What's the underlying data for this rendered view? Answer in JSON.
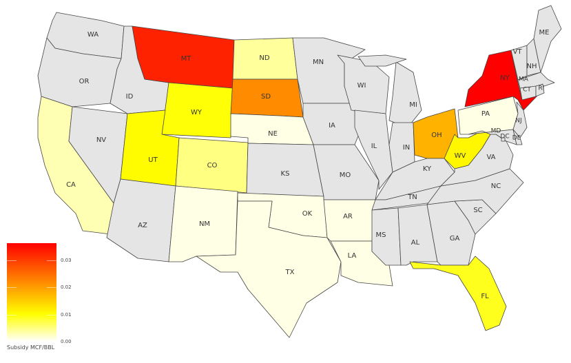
{
  "legend": {
    "title": "Subsidy MCF/BBL",
    "ticks": [
      "0.00",
      "0.01",
      "0.02",
      "0.03"
    ],
    "range": [
      0,
      0.0365
    ],
    "colors": {
      "low": "#ffffff",
      "mid": "#ffff00",
      "orange": "#ff8c00",
      "high": "#ff0000"
    }
  },
  "no_data_color": "#e5e5e5",
  "states": [
    {
      "code": "WA",
      "value": null
    },
    {
      "code": "OR",
      "value": null
    },
    {
      "code": "CA",
      "value": 0.003
    },
    {
      "code": "NV",
      "value": null
    },
    {
      "code": "ID",
      "value": null
    },
    {
      "code": "MT",
      "value": 0.033
    },
    {
      "code": "WY",
      "value": 0.01
    },
    {
      "code": "UT",
      "value": 0.0105
    },
    {
      "code": "CO",
      "value": 0.005
    },
    {
      "code": "AZ",
      "value": null
    },
    {
      "code": "NM",
      "value": 0.001
    },
    {
      "code": "ND",
      "value": 0.004
    },
    {
      "code": "SD",
      "value": 0.022
    },
    {
      "code": "NE",
      "value": 0.001
    },
    {
      "code": "KS",
      "value": null
    },
    {
      "code": "OK",
      "value": 0.001
    },
    {
      "code": "TX",
      "value": 0.001
    },
    {
      "code": "MN",
      "value": null
    },
    {
      "code": "IA",
      "value": null
    },
    {
      "code": "MO",
      "value": null
    },
    {
      "code": "AR",
      "value": 0.001
    },
    {
      "code": "LA",
      "value": 0.001
    },
    {
      "code": "WI",
      "value": null
    },
    {
      "code": "IL",
      "value": null
    },
    {
      "code": "MI",
      "value": null
    },
    {
      "code": "IN",
      "value": null
    },
    {
      "code": "OH",
      "value": 0.018
    },
    {
      "code": "KY",
      "value": null
    },
    {
      "code": "TN",
      "value": null
    },
    {
      "code": "MS",
      "value": null
    },
    {
      "code": "AL",
      "value": null
    },
    {
      "code": "GA",
      "value": null
    },
    {
      "code": "FL",
      "value": 0.009
    },
    {
      "code": "SC",
      "value": null
    },
    {
      "code": "NC",
      "value": null
    },
    {
      "code": "VA",
      "value": null
    },
    {
      "code": "WV",
      "value": 0.011
    },
    {
      "code": "PA",
      "value": 0.001
    },
    {
      "code": "NY",
      "value": 0.0365
    },
    {
      "code": "NJ",
      "value": null
    },
    {
      "code": "MD",
      "value": null
    },
    {
      "code": "DE",
      "value": null
    },
    {
      "code": "DC",
      "value": null
    },
    {
      "code": "VT",
      "value": null
    },
    {
      "code": "NH",
      "value": null
    },
    {
      "code": "ME",
      "value": null
    },
    {
      "code": "MA",
      "value": null
    },
    {
      "code": "CT",
      "value": null
    },
    {
      "code": "RI",
      "value": null
    }
  ]
}
